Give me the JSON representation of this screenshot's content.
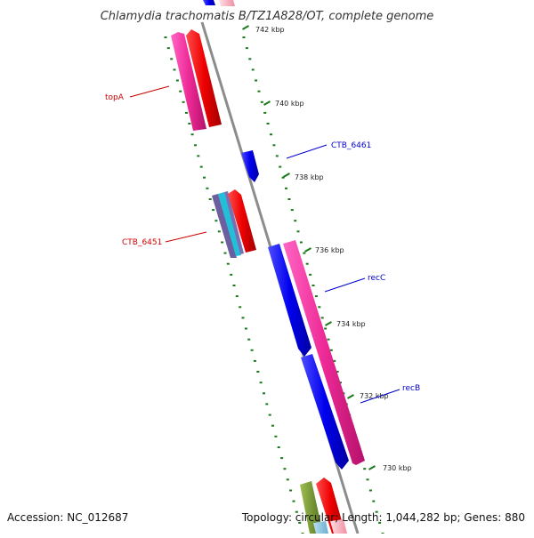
{
  "title": "Chlamydia trachomatis B/TZ1A828/OT, complete genome",
  "footer": {
    "accession": "Accession: NC_012687",
    "summary": "Topology: circular; Length: 1,044,282 bp; Genes: 880"
  },
  "colors": {
    "backbone": "#8c8c8c",
    "tick": "#1a7a1a",
    "forward_label": "#cc0000",
    "reverse_label": "#0000cc"
  },
  "scale_ticks": [
    {
      "label": "742 kbp",
      "kbp": 742
    },
    {
      "label": "740 kbp",
      "kbp": 740
    },
    {
      "label": "738 kbp",
      "kbp": 738
    },
    {
      "label": "736 kbp",
      "kbp": 736
    },
    {
      "label": "734 kbp",
      "kbp": 734
    },
    {
      "label": "732 kbp",
      "kbp": 732
    },
    {
      "label": "730 kbp",
      "kbp": 730
    }
  ],
  "gene_labels": [
    {
      "name": "topA",
      "strand": "forward"
    },
    {
      "name": "CTB_6451",
      "strand": "forward"
    },
    {
      "name": "CTB_6461",
      "strand": "reverse"
    },
    {
      "name": "recC",
      "strand": "reverse"
    },
    {
      "name": "recB",
      "strand": "reverse"
    }
  ]
}
